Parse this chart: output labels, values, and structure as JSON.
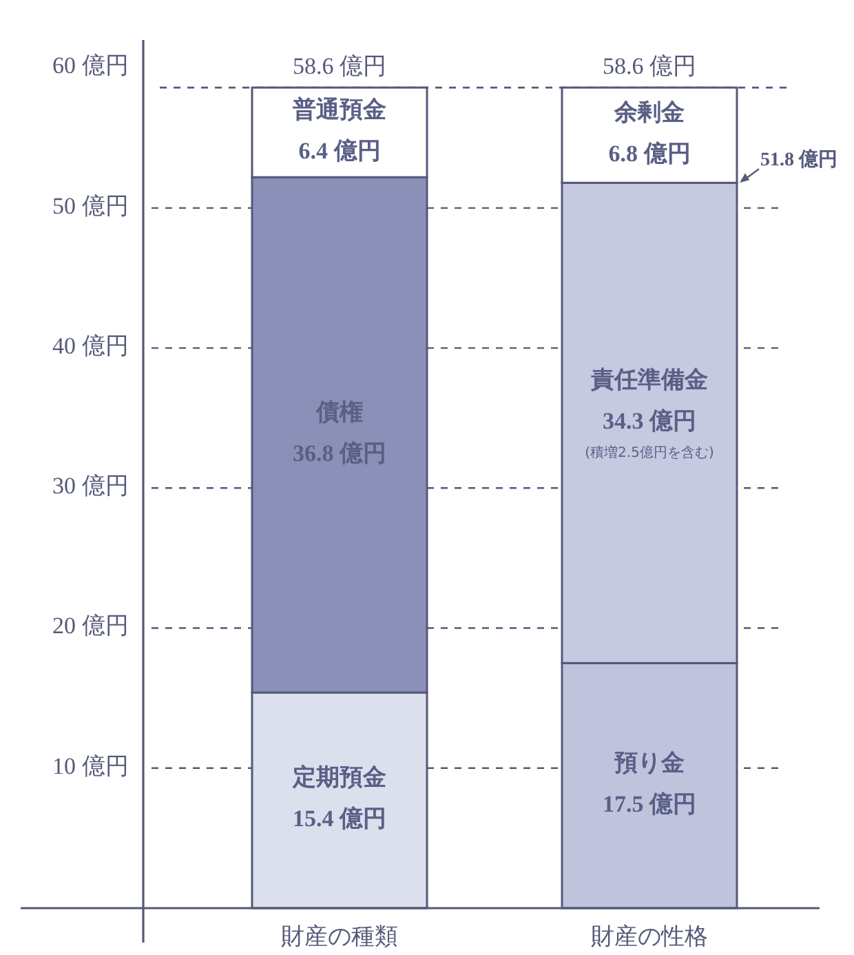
{
  "chart_data": {
    "type": "bar",
    "stacked": true,
    "categories": [
      "財産の種類",
      "財産の性格"
    ],
    "series": [
      {
        "colors": [
          "#dcdfec",
          "#bfc3dc"
        ],
        "values": [
          15.4,
          17.5
        ],
        "value_labels": [
          "定期預金\n15.4 億円",
          "預り金\n17.5 億円"
        ]
      },
      {
        "colors": [
          "#8a90b8",
          "#c6c9e0"
        ],
        "values": [
          36.8,
          34.3
        ],
        "value_labels": [
          "債権\n36.8 億円",
          "責任準備金\n34.3 億円\n(積増2.5億円を含む)"
        ]
      },
      {
        "colors": [
          "#ffffff",
          "#ffffff"
        ],
        "values": [
          6.4,
          6.8
        ],
        "value_labels": [
          "普通預金\n6.4 億円",
          "余剰金\n6.8 億円"
        ]
      }
    ],
    "totals": [
      "58.6 億円",
      "58.6 億円"
    ],
    "ylim": [
      0,
      62
    ],
    "yticks": [
      {
        "value": 10,
        "label": "10 億円"
      },
      {
        "value": 20,
        "label": "20 億円"
      },
      {
        "value": 30,
        "label": "30 億円"
      },
      {
        "value": 40,
        "label": "40 億円"
      },
      {
        "value": 50,
        "label": "50 億円"
      },
      {
        "value": 60,
        "label": "60 億円"
      }
    ],
    "grid": "y",
    "ref_lines": [
      {
        "axis": "y",
        "value": 58.6,
        "line_style": "dashed"
      }
    ],
    "annotations": [
      "51.8 億円"
    ]
  }
}
